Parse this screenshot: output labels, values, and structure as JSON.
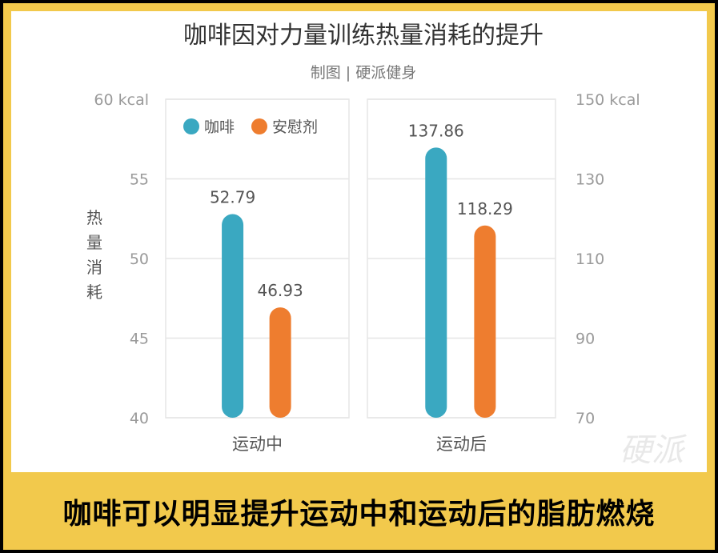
{
  "colors": {
    "coffee": "#3aa8c1",
    "placebo": "#ee7d2f",
    "text": "#555555",
    "axis": "#9a9a9a",
    "grid": "#e6e6e6",
    "banner": "#f2c94c"
  },
  "watermark": "硬派",
  "banner": "咖啡可以明显提升运动中和运动后的脂肪燃烧",
  "chart_data": {
    "type": "bar",
    "title": "咖啡因对力量训练热量消耗的提升",
    "subtitle": "制图 | 硬派健身",
    "ylabel": "热量消耗",
    "legend": [
      {
        "name": "咖啡",
        "color": "#3aa8c1"
      },
      {
        "name": "安慰剂",
        "color": "#ee7d2f"
      }
    ],
    "legend_position": "top-left",
    "grid": true,
    "panels": [
      {
        "category": "运动中",
        "ylim": [
          40,
          60
        ],
        "ticks": [
          "40",
          "45",
          "50",
          "55",
          "60 kcal"
        ],
        "series": [
          {
            "name": "咖啡",
            "value": 52.79,
            "label": "52.79"
          },
          {
            "name": "安慰剂",
            "value": 46.93,
            "label": "46.93"
          }
        ]
      },
      {
        "category": "运动后",
        "ylim": [
          70,
          150
        ],
        "ticks": [
          "70",
          "90",
          "110",
          "130",
          "150 kcal"
        ],
        "series": [
          {
            "name": "咖啡",
            "value": 137.86,
            "label": "137.86"
          },
          {
            "name": "安慰剂",
            "value": 118.29,
            "label": "118.29"
          }
        ]
      }
    ]
  }
}
